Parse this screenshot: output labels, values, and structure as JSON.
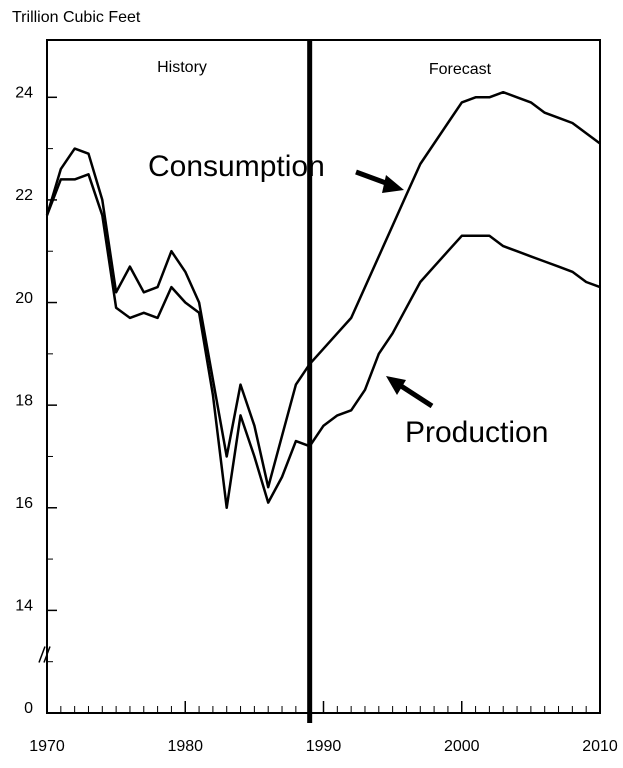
{
  "chart_data": {
    "type": "line",
    "y_axis_label": "Trillion Cubic Feet",
    "x": [
      1970,
      1971,
      1972,
      1973,
      1974,
      1975,
      1976,
      1977,
      1978,
      1979,
      1980,
      1981,
      1982,
      1983,
      1984,
      1985,
      1986,
      1987,
      1988,
      1989,
      1990,
      1991,
      1992,
      1993,
      1994,
      1995,
      1996,
      1997,
      1998,
      1999,
      2000,
      2001,
      2002,
      2003,
      2004,
      2005,
      2006,
      2007,
      2008,
      2009,
      2010
    ],
    "series": [
      {
        "name": "Consumption",
        "color": "#000000",
        "values": [
          21.7,
          22.6,
          23.0,
          22.9,
          22.0,
          20.2,
          20.7,
          20.2,
          20.3,
          21.0,
          20.6,
          20.0,
          18.5,
          17.0,
          18.4,
          17.6,
          16.4,
          17.4,
          18.4,
          18.8,
          19.1,
          19.4,
          19.7,
          20.3,
          20.9,
          21.5,
          22.1,
          22.7,
          23.1,
          23.5,
          23.9,
          24.0,
          24.0,
          24.1,
          24.0,
          23.9,
          23.7,
          23.6,
          23.5,
          23.3,
          23.1
        ]
      },
      {
        "name": "Production",
        "color": "#000000",
        "values": [
          21.7,
          22.4,
          22.4,
          22.5,
          21.7,
          19.9,
          19.7,
          19.8,
          19.7,
          20.3,
          20.0,
          19.8,
          18.2,
          16.0,
          17.8,
          17.0,
          16.1,
          16.6,
          17.3,
          17.2,
          17.6,
          17.8,
          17.9,
          18.3,
          19.0,
          19.4,
          19.9,
          20.4,
          20.7,
          21.0,
          21.3,
          21.3,
          21.3,
          21.1,
          21.0,
          20.9,
          20.8,
          20.7,
          20.6,
          20.4,
          20.3
        ]
      }
    ],
    "xlim": [
      1970,
      2010
    ],
    "xticks": [
      1970,
      1980,
      1990,
      2000,
      2010
    ],
    "xminor": 1,
    "ylim": [
      0,
      25
    ],
    "y_break": [
      0,
      12
    ],
    "yticks": [
      0,
      14,
      16,
      18,
      20,
      22,
      24
    ],
    "yminor": 1,
    "divider_x": 1989,
    "annotations": [
      "History",
      "Forecast"
    ]
  }
}
